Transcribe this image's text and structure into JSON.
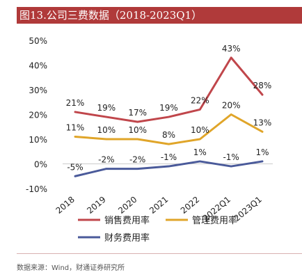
{
  "title": "图13.公司三费数据（2018-2023Q1）",
  "source": "数据来源：Wind，财通证券研究所",
  "chart_data": {
    "type": "line",
    "categories": [
      "2018",
      "2019",
      "2020",
      "2021",
      "2022",
      "2022Q1",
      "2023Q1"
    ],
    "y_ticks": [
      "50%",
      "40%",
      "30%",
      "20%",
      "10%",
      "0%",
      "-10%"
    ],
    "ylim": [
      -10,
      50
    ],
    "grid": false,
    "legend_position": "bottom",
    "series": [
      {
        "name": "销售费用率",
        "color": "#c0464b",
        "values": [
          21,
          19,
          17,
          19,
          22,
          43,
          28
        ],
        "labels": [
          "21%",
          "19%",
          "17%",
          "19%",
          "22%",
          "43%",
          "28%"
        ]
      },
      {
        "name": "管理费用率",
        "color": "#e0a529",
        "values": [
          11,
          10,
          10,
          8,
          10,
          20,
          13
        ],
        "labels": [
          "11%",
          "10%",
          "10%",
          "8%",
          "10%",
          "20%",
          "13%"
        ]
      },
      {
        "name": "财务费用率",
        "color": "#4a5a9a",
        "values": [
          -5,
          -2,
          -2,
          -1,
          1,
          -1,
          1
        ],
        "labels": [
          "-5%",
          "-2%",
          "-2%",
          "-1%",
          "1%",
          "-1%",
          "1%"
        ]
      }
    ]
  }
}
